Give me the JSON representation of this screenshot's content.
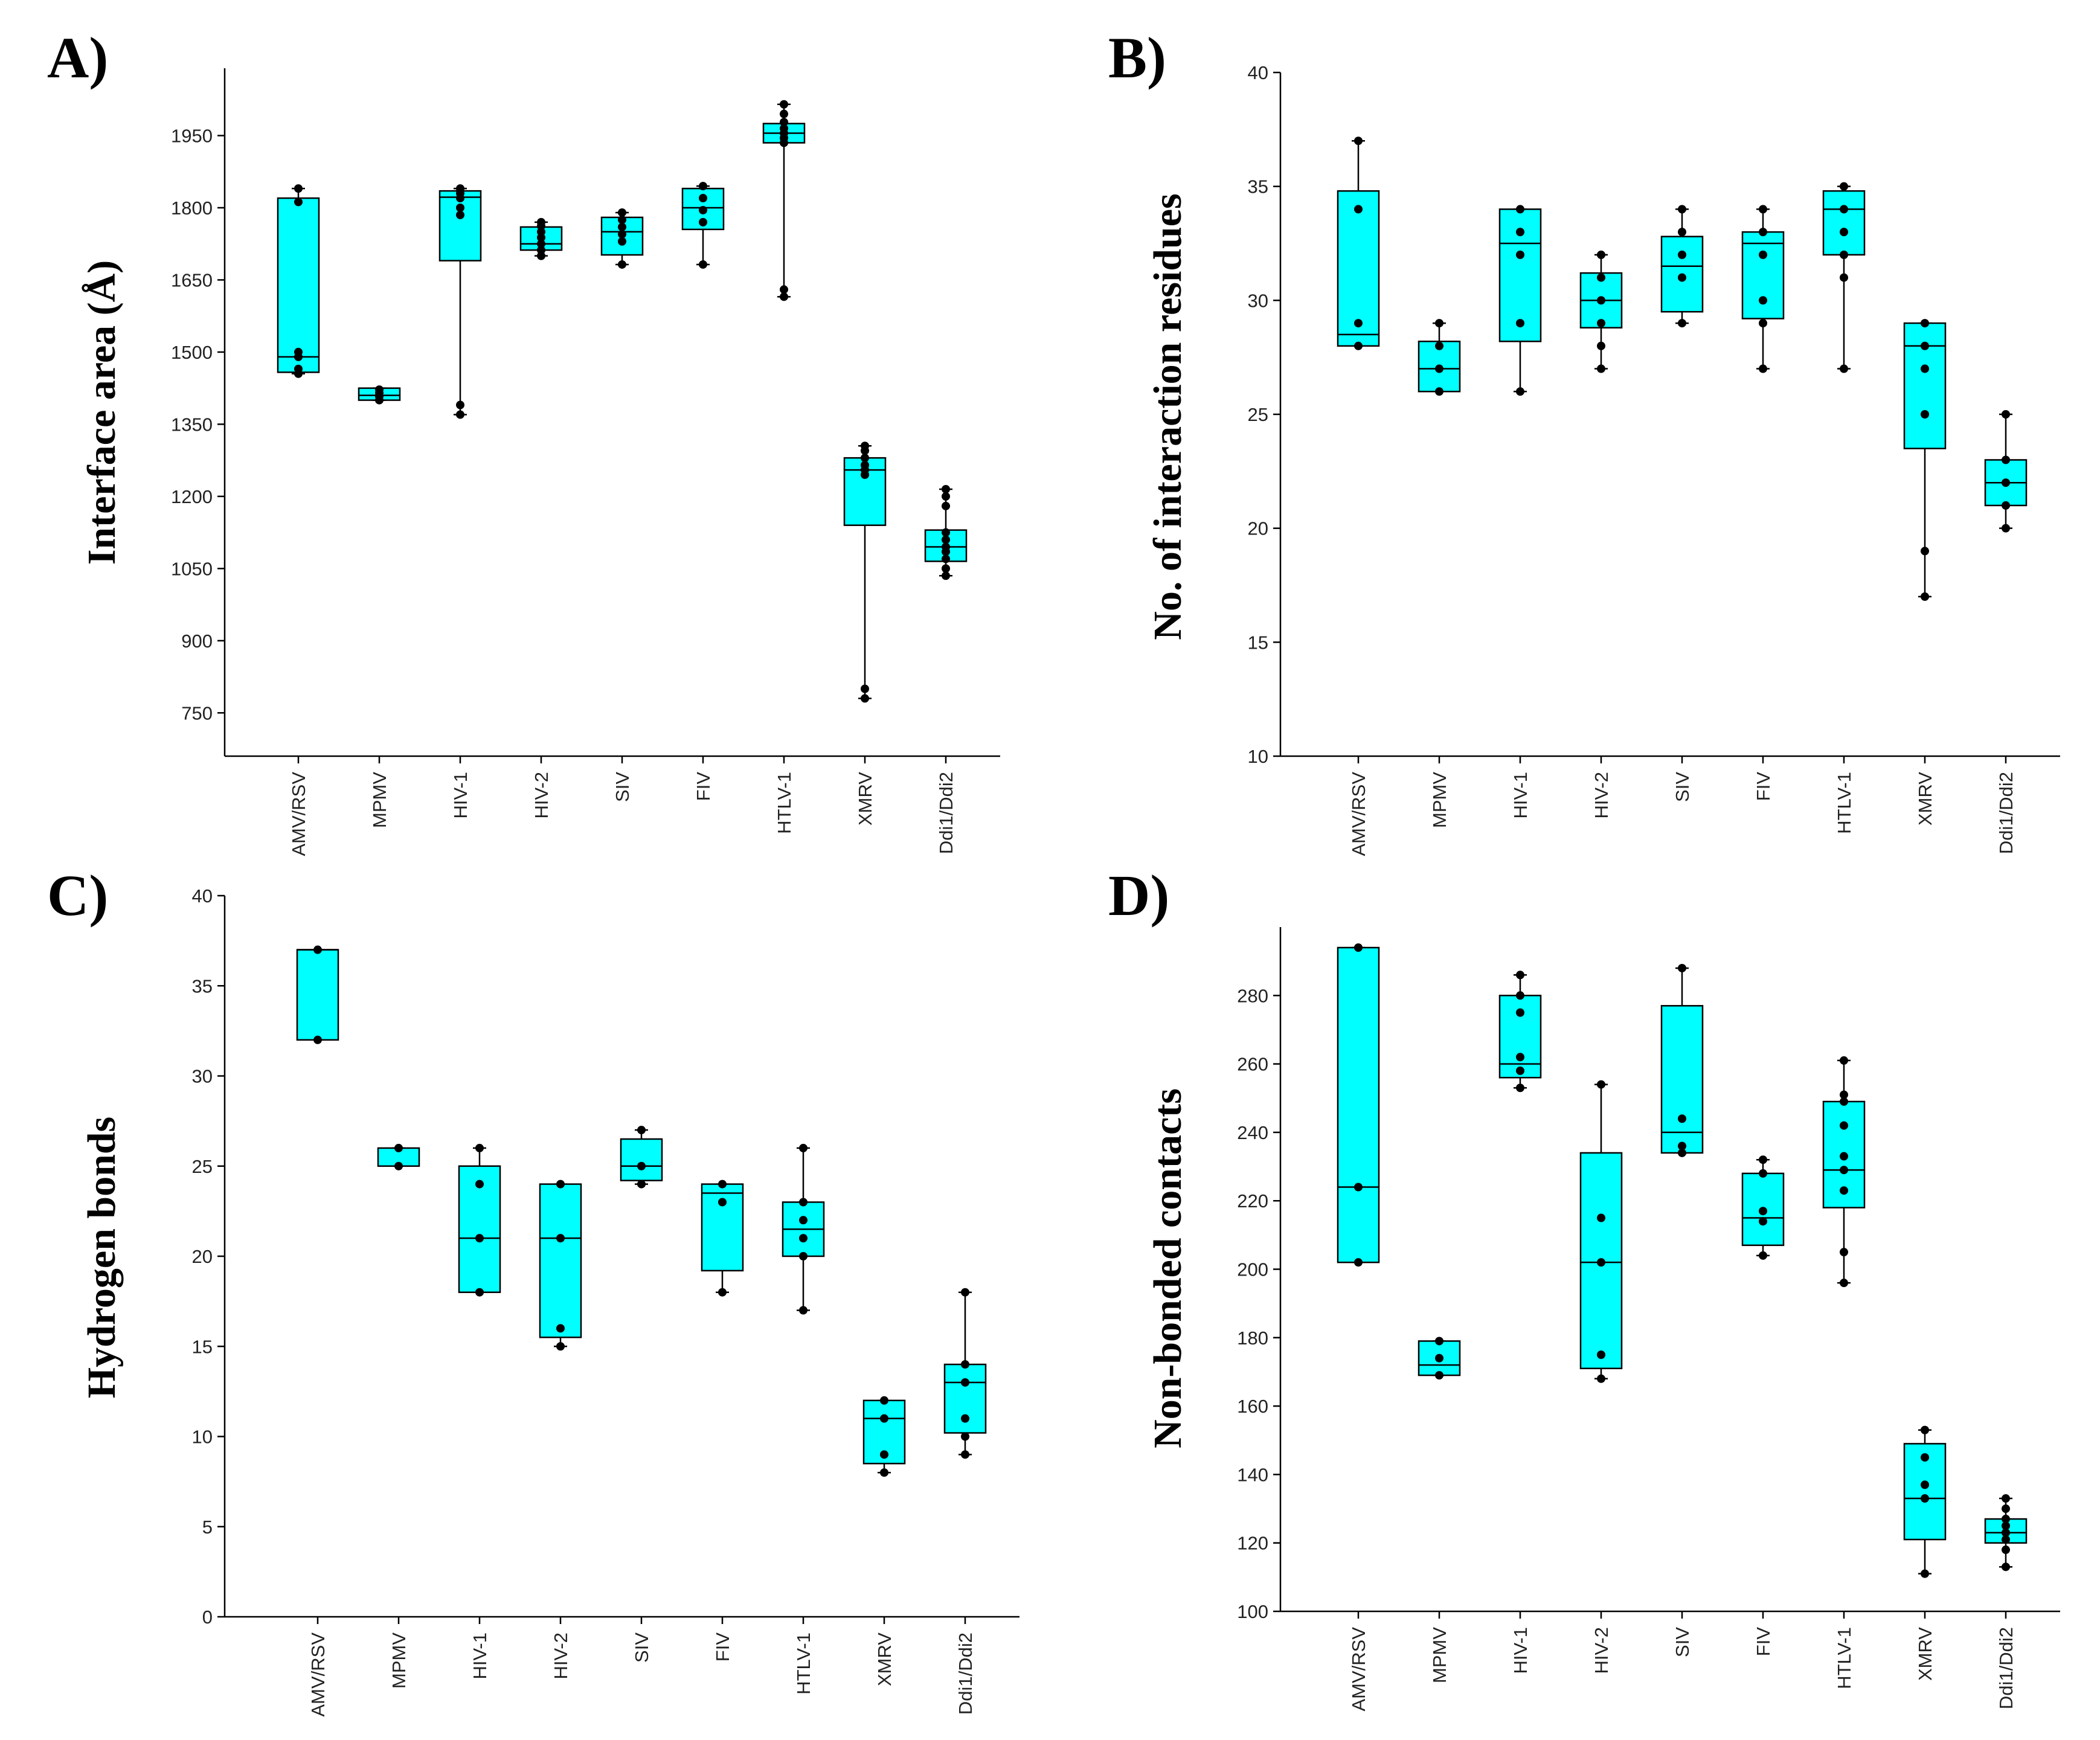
{
  "style": {
    "box_fill": "#00FFFF",
    "point_color": "#000000",
    "line_color": "#000000"
  },
  "categories": [
    "AMV/RSV",
    "MPMV",
    "HIV-1",
    "HIV-2",
    "SIV",
    "FIV",
    "HTLV-1",
    "XMRV",
    "Ddi1/Ddi2"
  ],
  "chart_data": [
    {
      "type": "box",
      "panel": "A)",
      "ylabel": "Interface area (Å)",
      "yticks": [
        750,
        900,
        1050,
        1200,
        1350,
        1500,
        1650,
        1800,
        1950
      ],
      "ylim": [
        660,
        2090
      ],
      "boxes": [
        {
          "q1": 1458,
          "median": 1490,
          "q3": 1820,
          "min": 1455,
          "max": 1840,
          "points": [
            1455,
            1465,
            1490,
            1500,
            1812,
            1840
          ]
        },
        {
          "q1": 1400,
          "median": 1410,
          "q3": 1425,
          "min": 1400,
          "max": 1425,
          "points": [
            1400,
            1408,
            1415,
            1422
          ]
        },
        {
          "q1": 1690,
          "median": 1822,
          "q3": 1835,
          "min": 1370,
          "max": 1840,
          "points": [
            1370,
            1390,
            1785,
            1800,
            1820,
            1830,
            1840
          ]
        },
        {
          "q1": 1712,
          "median": 1725,
          "q3": 1760,
          "min": 1700,
          "max": 1770,
          "points": [
            1700,
            1712,
            1725,
            1738,
            1750,
            1762,
            1770
          ]
        },
        {
          "q1": 1702,
          "median": 1750,
          "q3": 1780,
          "min": 1682,
          "max": 1790,
          "points": [
            1682,
            1730,
            1745,
            1760,
            1775,
            1790
          ]
        },
        {
          "q1": 1755,
          "median": 1800,
          "q3": 1840,
          "min": 1682,
          "max": 1845,
          "points": [
            1682,
            1770,
            1795,
            1820,
            1845
          ]
        },
        {
          "q1": 1935,
          "median": 1955,
          "q3": 1975,
          "min": 1615,
          "max": 2015,
          "points": [
            1615,
            1630,
            1935,
            1945,
            1955,
            1965,
            1978,
            1995,
            2015
          ]
        },
        {
          "q1": 1140,
          "median": 1255,
          "q3": 1280,
          "min": 780,
          "max": 1305,
          "points": [
            780,
            800,
            1245,
            1255,
            1265,
            1280,
            1295,
            1305
          ]
        },
        {
          "q1": 1065,
          "median": 1095,
          "q3": 1130,
          "min": 1035,
          "max": 1215,
          "points": [
            1035,
            1050,
            1070,
            1085,
            1095,
            1110,
            1125,
            1180,
            1200,
            1215
          ]
        }
      ]
    },
    {
      "type": "box",
      "panel": "B)",
      "ylabel": "No. of interaction residues",
      "yticks": [
        10,
        15,
        20,
        25,
        30,
        35,
        40
      ],
      "ylim": [
        10,
        40
      ],
      "boxes": [
        {
          "q1": 28,
          "median": 28.5,
          "q3": 34.8,
          "min": 28,
          "max": 37,
          "points": [
            28,
            29,
            34,
            37
          ]
        },
        {
          "q1": 26,
          "median": 27,
          "q3": 28.2,
          "min": 26,
          "max": 29,
          "points": [
            26,
            27,
            28,
            29
          ]
        },
        {
          "q1": 28.2,
          "median": 32.5,
          "q3": 34,
          "min": 26,
          "max": 34,
          "points": [
            26,
            29,
            32,
            33,
            34
          ]
        },
        {
          "q1": 28.8,
          "median": 30,
          "q3": 31.2,
          "min": 27,
          "max": 32,
          "points": [
            27,
            28,
            29,
            30,
            31,
            32
          ]
        },
        {
          "q1": 29.5,
          "median": 31.5,
          "q3": 32.8,
          "min": 29,
          "max": 34,
          "points": [
            29,
            31,
            32,
            33,
            34
          ]
        },
        {
          "q1": 29.2,
          "median": 32.5,
          "q3": 33,
          "min": 27,
          "max": 34,
          "points": [
            27,
            29,
            30,
            32,
            33,
            34
          ]
        },
        {
          "q1": 32,
          "median": 34,
          "q3": 34.8,
          "min": 27,
          "max": 35,
          "points": [
            27,
            31,
            32,
            33,
            34,
            35
          ]
        },
        {
          "q1": 23.5,
          "median": 28,
          "q3": 29,
          "min": 17,
          "max": 29,
          "points": [
            17,
            19,
            25,
            27,
            28,
            29
          ]
        },
        {
          "q1": 21,
          "median": 22,
          "q3": 23,
          "min": 20,
          "max": 25,
          "points": [
            20,
            21,
            22,
            23,
            25
          ]
        }
      ]
    },
    {
      "type": "box",
      "panel": "C)",
      "ylabel": "Hydrogen bonds",
      "yticks": [
        0,
        5,
        10,
        15,
        20,
        25,
        30,
        35,
        40
      ],
      "ylim": [
        0,
        40
      ],
      "boxes": [
        {
          "q1": 32,
          "median": 37,
          "q3": 37,
          "min": 32,
          "max": 37,
          "points": [
            32,
            37
          ]
        },
        {
          "q1": 25,
          "median": 25,
          "q3": 26,
          "min": 25,
          "max": 26,
          "points": [
            25,
            26
          ]
        },
        {
          "q1": 18,
          "median": 21,
          "q3": 25,
          "min": 18,
          "max": 26,
          "points": [
            18,
            21,
            24,
            26
          ]
        },
        {
          "q1": 15.5,
          "median": 21,
          "q3": 24,
          "min": 15,
          "max": 24,
          "points": [
            15,
            16,
            21,
            24
          ]
        },
        {
          "q1": 24.2,
          "median": 25,
          "q3": 26.5,
          "min": 24,
          "max": 27,
          "points": [
            24,
            25,
            27
          ]
        },
        {
          "q1": 19.2,
          "median": 23.5,
          "q3": 24,
          "min": 18,
          "max": 24,
          "points": [
            18,
            23,
            24
          ]
        },
        {
          "q1": 20,
          "median": 21.5,
          "q3": 23,
          "min": 17,
          "max": 26,
          "points": [
            17,
            20,
            21,
            22,
            23,
            26
          ]
        },
        {
          "q1": 8.5,
          "median": 11,
          "q3": 12,
          "min": 8,
          "max": 12,
          "points": [
            8,
            9,
            11,
            12
          ]
        },
        {
          "q1": 10.2,
          "median": 13,
          "q3": 14,
          "min": 9,
          "max": 18,
          "points": [
            9,
            10,
            11,
            13,
            14,
            18
          ]
        }
      ]
    },
    {
      "type": "box",
      "panel": "D)",
      "ylabel": "Non-bonded contacts",
      "yticks": [
        100,
        120,
        140,
        160,
        180,
        200,
        220,
        240,
        260,
        280
      ],
      "ylim": [
        100,
        300
      ],
      "boxes": [
        {
          "q1": 202,
          "median": 224,
          "q3": 294,
          "min": 202,
          "max": 294,
          "points": [
            202,
            224,
            294
          ]
        },
        {
          "q1": 169,
          "median": 172,
          "q3": 179,
          "min": 169,
          "max": 179,
          "points": [
            169,
            174,
            179
          ]
        },
        {
          "q1": 256,
          "median": 260,
          "q3": 280,
          "min": 253,
          "max": 286,
          "points": [
            253,
            258,
            262,
            275,
            280,
            286
          ]
        },
        {
          "q1": 171,
          "median": 202,
          "q3": 234,
          "min": 168,
          "max": 254,
          "points": [
            168,
            175,
            202,
            215,
            254
          ]
        },
        {
          "q1": 234,
          "median": 240,
          "q3": 277,
          "min": 234,
          "max": 288,
          "points": [
            234,
            236,
            244,
            288
          ]
        },
        {
          "q1": 207,
          "median": 215,
          "q3": 228,
          "min": 204,
          "max": 232,
          "points": [
            204,
            214,
            217,
            228,
            232
          ]
        },
        {
          "q1": 218,
          "median": 229,
          "q3": 249,
          "min": 196,
          "max": 261,
          "points": [
            196,
            205,
            223,
            229,
            233,
            242,
            249,
            251,
            261
          ]
        },
        {
          "q1": 121,
          "median": 133,
          "q3": 149,
          "min": 111,
          "max": 153,
          "points": [
            111,
            133,
            137,
            145,
            153
          ]
        },
        {
          "q1": 120,
          "median": 123,
          "q3": 127,
          "min": 113,
          "max": 133,
          "points": [
            113,
            118,
            121,
            123,
            125,
            127,
            130,
            133
          ]
        }
      ]
    }
  ]
}
